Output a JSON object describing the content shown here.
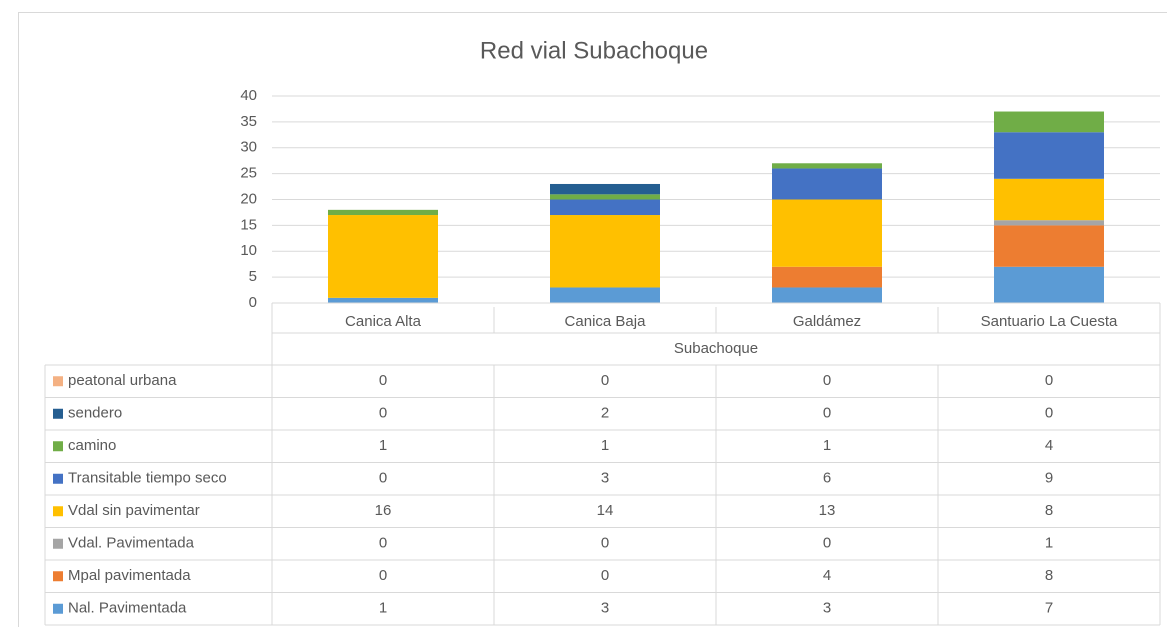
{
  "chart_data": {
    "type": "stacked_bar",
    "title": "Red vial Subachoque",
    "group_label": "Subachoque",
    "categories": [
      "Canica Alta",
      "Canica Baja",
      "Galdámez",
      "Santuario La Cuesta"
    ],
    "series": [
      {
        "name": "Nal. Pavimentada",
        "color": "#5b9bd5",
        "values": [
          1,
          3,
          3,
          7
        ]
      },
      {
        "name": "Mpal pavimentada",
        "color": "#ed7d31",
        "values": [
          0,
          0,
          4,
          8
        ]
      },
      {
        "name": "Vdal. Pavimentada",
        "color": "#a5a5a5",
        "values": [
          0,
          0,
          0,
          1
        ]
      },
      {
        "name": "Vdal sin pavimentar",
        "color": "#ffc000",
        "values": [
          16,
          14,
          13,
          8
        ]
      },
      {
        "name": "Transitable tiempo seco",
        "color": "#4472c4",
        "values": [
          0,
          3,
          6,
          9
        ]
      },
      {
        "name": "camino",
        "color": "#70ad47",
        "values": [
          1,
          1,
          1,
          4
        ]
      },
      {
        "name": "sendero",
        "color": "#255e91",
        "values": [
          0,
          2,
          0,
          0
        ]
      },
      {
        "name": "peatonal urbana",
        "color": "#f4b183",
        "values": [
          0,
          0,
          0,
          0
        ]
      }
    ],
    "ylim": [
      0,
      40
    ],
    "yticks": [
      0,
      5,
      10,
      15,
      20,
      25,
      30,
      35,
      40
    ],
    "grid": true
  }
}
